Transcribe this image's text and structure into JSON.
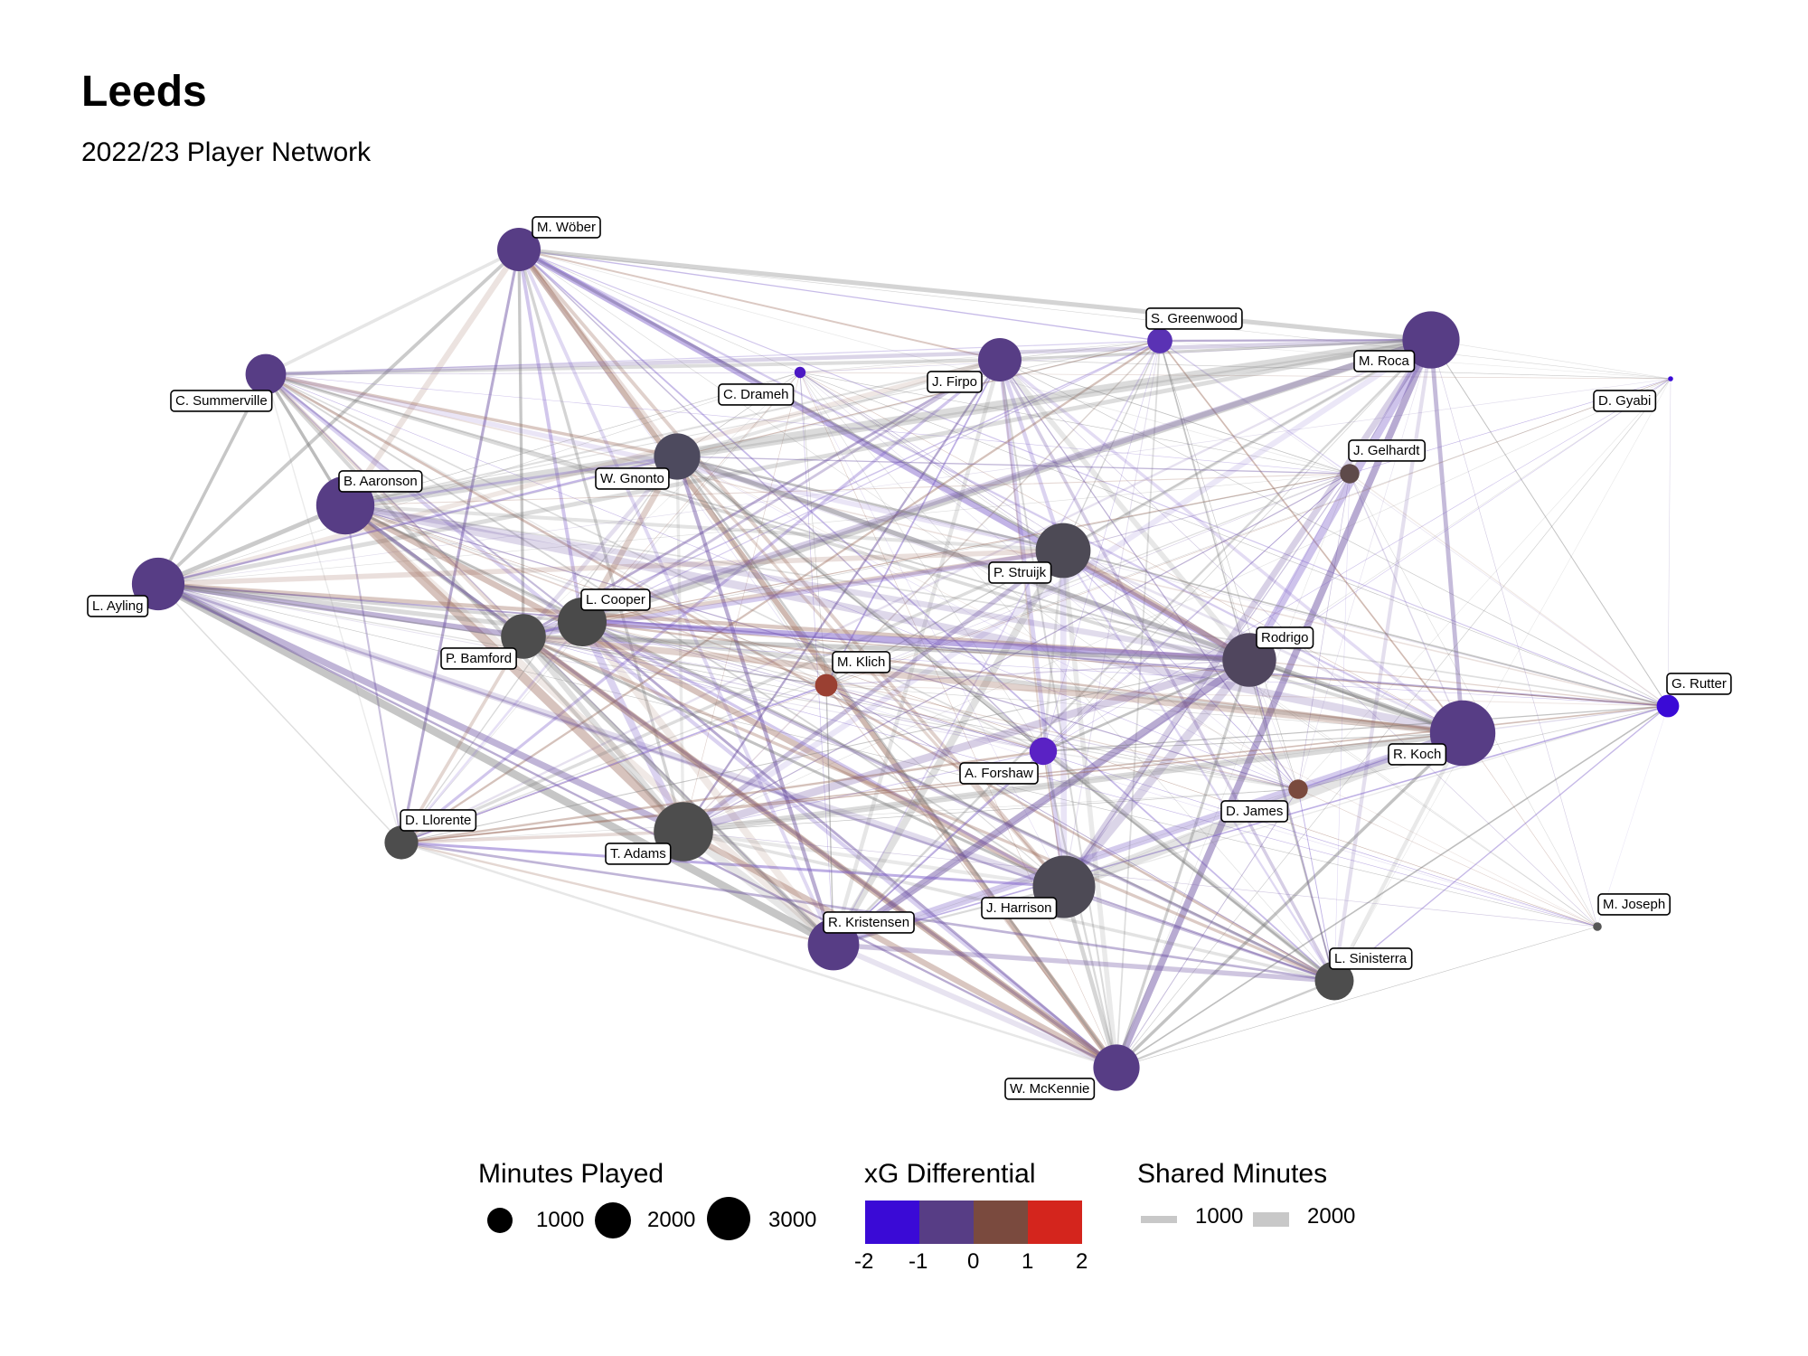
{
  "title": "Leeds",
  "subtitle": "2022/23 Player Network",
  "colors": {
    "xg_minus2": "#3a0ad6",
    "xg_minus1": "#573d85",
    "xg_zero": "#7a4a3e",
    "xg_plus1": "#8a4a3a",
    "xg_plus2": "#d4251d",
    "neutral": "#4d4d4d",
    "edge_gray": "#7a7a7a",
    "edge_purple": "#7a5cc8"
  },
  "players": [
    {
      "id": "wober",
      "name": "M. Wöber",
      "color": "#573d85",
      "minutes": 1500
    },
    {
      "id": "summerville",
      "name": "C. Summerville",
      "color": "#573d85",
      "minutes": 1300
    },
    {
      "id": "drameh",
      "name": "C. Drameh",
      "color": "#4b17c4",
      "minutes": 100
    },
    {
      "id": "firpo",
      "name": "J. Firpo",
      "color": "#573d85",
      "minutes": 1500
    },
    {
      "id": "greenwood",
      "name": "S. Greenwood",
      "color": "#5a32b4",
      "minutes": 500
    },
    {
      "id": "roca",
      "name": "M. Roca",
      "color": "#573d85",
      "minutes": 2600
    },
    {
      "id": "gyabi",
      "name": "D. Gyabi",
      "color": "#3a0ad6",
      "minutes": 20
    },
    {
      "id": "gelhardt",
      "name": "J. Gelhardt",
      "color": "#5e4a4a",
      "minutes": 300
    },
    {
      "id": "aaronson",
      "name": "B. Aaronson",
      "color": "#573d85",
      "minutes": 2700
    },
    {
      "id": "gnonto",
      "name": "W. Gnonto",
      "color": "#4d4a5e",
      "minutes": 1700
    },
    {
      "id": "ayling",
      "name": "L. Ayling",
      "color": "#573d85",
      "minutes": 2200
    },
    {
      "id": "struijk",
      "name": "P. Struijk",
      "color": "#4d4a55",
      "minutes": 2400
    },
    {
      "id": "cooper",
      "name": "L. Cooper",
      "color": "#4a4a4a",
      "minutes": 1900
    },
    {
      "id": "bamford",
      "name": "P. Bamford",
      "color": "#4d4d4d",
      "minutes": 1600
    },
    {
      "id": "klich",
      "name": "M. Klich",
      "color": "#9a4032",
      "minutes": 400
    },
    {
      "id": "rodrigo",
      "name": "Rodrigo",
      "color": "#50465e",
      "minutes": 2300
    },
    {
      "id": "rutter",
      "name": "G. Rutter",
      "color": "#3a0ad6",
      "minutes": 400
    },
    {
      "id": "forshaw",
      "name": "A. Forshaw",
      "color": "#5a22c4",
      "minutes": 600
    },
    {
      "id": "koch",
      "name": "R. Koch",
      "color": "#573d85",
      "minutes": 3400
    },
    {
      "id": "james",
      "name": "D. James",
      "color": "#7a4a3e",
      "minutes": 300
    },
    {
      "id": "llorente",
      "name": "D. Llorente",
      "color": "#4d4d4d",
      "minutes": 900
    },
    {
      "id": "adams",
      "name": "T. Adams",
      "color": "#4d4d4d",
      "minutes": 2800
    },
    {
      "id": "harrison",
      "name": "J. Harrison",
      "color": "#4d4a55",
      "minutes": 3100
    },
    {
      "id": "kristensen",
      "name": "R. Kristensen",
      "color": "#573d85",
      "minutes": 2100
    },
    {
      "id": "joseph",
      "name": "M. Joseph",
      "color": "#555555",
      "minutes": 60
    },
    {
      "id": "sinisterra",
      "name": "L. Sinisterra",
      "color": "#4d4d4d",
      "minutes": 1200
    },
    {
      "id": "mckennie",
      "name": "W. McKennie",
      "color": "#573d85",
      "minutes": 1700
    }
  ],
  "legend": {
    "size": {
      "title": "Minutes Played",
      "items": [
        {
          "label": "1000",
          "minutes": 1000
        },
        {
          "label": "2000",
          "minutes": 2000
        },
        {
          "label": "3000",
          "minutes": 3000
        }
      ]
    },
    "color": {
      "title": "xG Differential",
      "blocks": [
        "#3a0ad6",
        "#573d85",
        "#7a4a3e",
        "#d4251d"
      ],
      "ticks": [
        "-2",
        "-1",
        "0",
        "1",
        "2"
      ]
    },
    "edges": {
      "title": "Shared Minutes",
      "items": [
        {
          "label": "1000",
          "shared": 1000
        },
        {
          "label": "2000",
          "shared": 2000
        }
      ]
    }
  }
}
